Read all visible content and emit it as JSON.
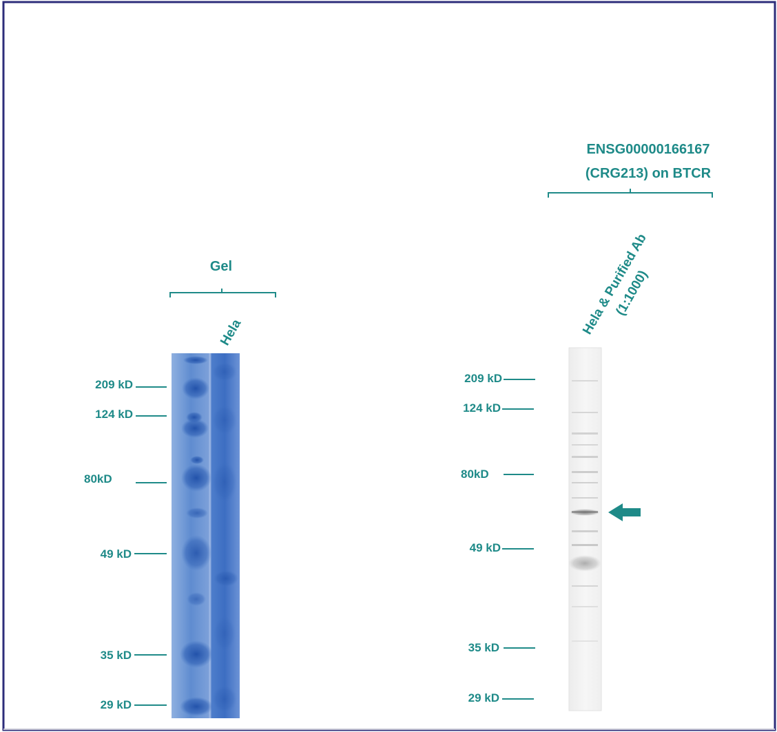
{
  "colors": {
    "frame": "#2d2d7a",
    "label_teal": "#1e8a88",
    "coomassie_blue": "#3f72c2",
    "western_grey": "#8a8a8a"
  },
  "gel_panel": {
    "group_label": "Gel",
    "lane_label": "Hela",
    "markers": [
      "209 kD",
      "124 kD",
      "80kD",
      "49 kD",
      "35 kD",
      "29 kD"
    ]
  },
  "western_panel": {
    "title_line1": "ENSG00000166167",
    "title_line2": "(CRG213) on BTCR",
    "lane_label_line1": "Hela & Purified Ab",
    "lane_label_line2": "(1:1000)",
    "markers": [
      "209 kD",
      "124 kD",
      "80kD",
      "49 kD",
      "35 kD",
      "29 kD"
    ],
    "arrow_icon": "left-arrow-icon"
  }
}
